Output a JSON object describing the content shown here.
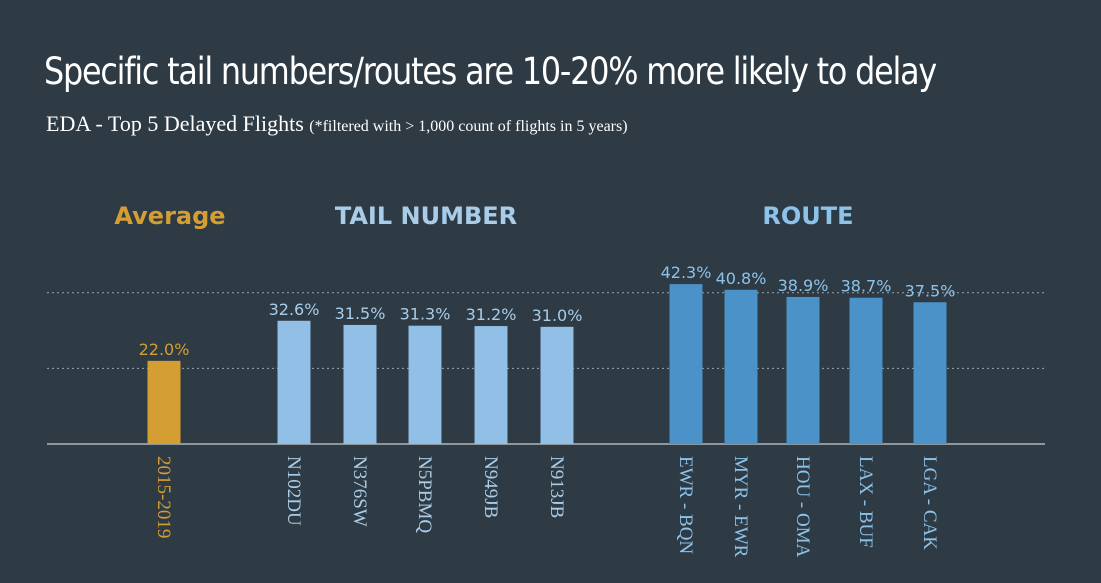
{
  "page": {
    "headline": "Specific tail numbers/routes are 10-20% more likely to delay",
    "subtitle": "EDA - Top 5 Delayed Flights",
    "subtitle_note": "(*filtered with  > 1,000 count of flights in 5 years)"
  },
  "chart_data": {
    "type": "bar",
    "ylim": [
      0,
      50
    ],
    "grid": "dotted horizontal lines",
    "value_suffix": "%",
    "colors": {
      "average": "#d59e33",
      "tail": "#92bfe5",
      "route": "#4a92c7",
      "average_label": "#d59e33",
      "tail_label": "#a9cde9",
      "route_label": "#8cc3ea",
      "grid": "#9aa4ad",
      "axis": "#c9cfd4"
    },
    "groups": [
      {
        "key": "average",
        "label": "Average",
        "categories": [
          "2015-2019"
        ],
        "values": [
          22.0
        ]
      },
      {
        "key": "tail",
        "label": "TAIL NUMBER",
        "categories": [
          "N102DU",
          "N376SW",
          "N5PBMQ",
          "N949JB",
          "N913JB"
        ],
        "values": [
          32.6,
          31.5,
          31.3,
          31.2,
          31.0
        ]
      },
      {
        "key": "route",
        "label": "ROUTE",
        "categories": [
          "EWR - BQN",
          "MYR - EWR",
          "HOU - OMA",
          "LAX - BUF",
          "LGA - CAK"
        ],
        "values": [
          42.3,
          40.8,
          38.9,
          38.7,
          37.5
        ]
      }
    ]
  }
}
